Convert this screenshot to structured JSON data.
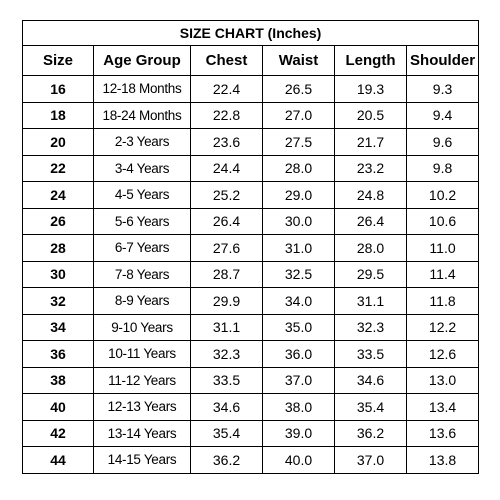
{
  "table": {
    "title": "SIZE CHART (Inches)",
    "columns": [
      "Size",
      "Age Group",
      "Chest",
      "Waist",
      "Length",
      "Shoulder"
    ],
    "rows": [
      [
        "16",
        "12-18 Months",
        "22.4",
        "26.5",
        "19.3",
        "9.3"
      ],
      [
        "18",
        "18-24 Months",
        "22.8",
        "27.0",
        "20.5",
        "9.4"
      ],
      [
        "20",
        "2-3 Years",
        "23.6",
        "27.5",
        "21.7",
        "9.6"
      ],
      [
        "22",
        "3-4 Years",
        "24.4",
        "28.0",
        "23.2",
        "9.8"
      ],
      [
        "24",
        "4-5 Years",
        "25.2",
        "29.0",
        "24.8",
        "10.2"
      ],
      [
        "26",
        "5-6 Years",
        "26.4",
        "30.0",
        "26.4",
        "10.6"
      ],
      [
        "28",
        "6-7 Years",
        "27.6",
        "31.0",
        "28.0",
        "11.0"
      ],
      [
        "30",
        "7-8 Years",
        "28.7",
        "32.5",
        "29.5",
        "11.4"
      ],
      [
        "32",
        "8-9 Years",
        "29.9",
        "34.0",
        "31.1",
        "11.8"
      ],
      [
        "34",
        "9-10 Years",
        "31.1",
        "35.0",
        "32.3",
        "12.2"
      ],
      [
        "36",
        "10-11 Years",
        "32.3",
        "36.0",
        "33.5",
        "12.6"
      ],
      [
        "38",
        "11-12 Years",
        "33.5",
        "37.0",
        "34.6",
        "13.0"
      ],
      [
        "40",
        "12-13 Years",
        "34.6",
        "38.0",
        "35.4",
        "13.4"
      ],
      [
        "42",
        "13-14 Years",
        "35.4",
        "39.0",
        "36.2",
        "13.6"
      ],
      [
        "44",
        "14-15 Years",
        "36.2",
        "40.0",
        "37.0",
        "13.8"
      ]
    ]
  }
}
